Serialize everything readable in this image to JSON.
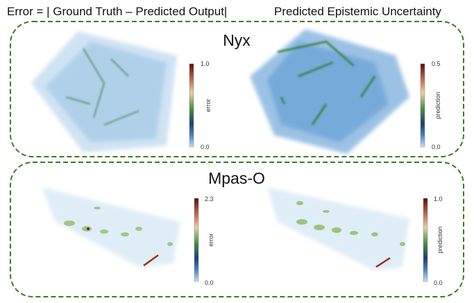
{
  "header": {
    "left": "Error = | Ground Truth – Predicted Output|",
    "right": "Predicted Epistemic Uncertainty"
  },
  "panels": [
    {
      "title": "Nyx",
      "plots": [
        {
          "colorbar": {
            "label": "error",
            "max": "1.0",
            "min": "0.0"
          }
        },
        {
          "colorbar": {
            "label": "prediction",
            "max": "0.5",
            "min": "0.0"
          }
        }
      ]
    },
    {
      "title": "Mpas-O",
      "plots": [
        {
          "colorbar": {
            "label": "error",
            "max": "2.3",
            "min": "0.0"
          }
        },
        {
          "colorbar": {
            "label": "prediction",
            "max": "1.0",
            "min": "0.0"
          }
        }
      ]
    }
  ]
}
